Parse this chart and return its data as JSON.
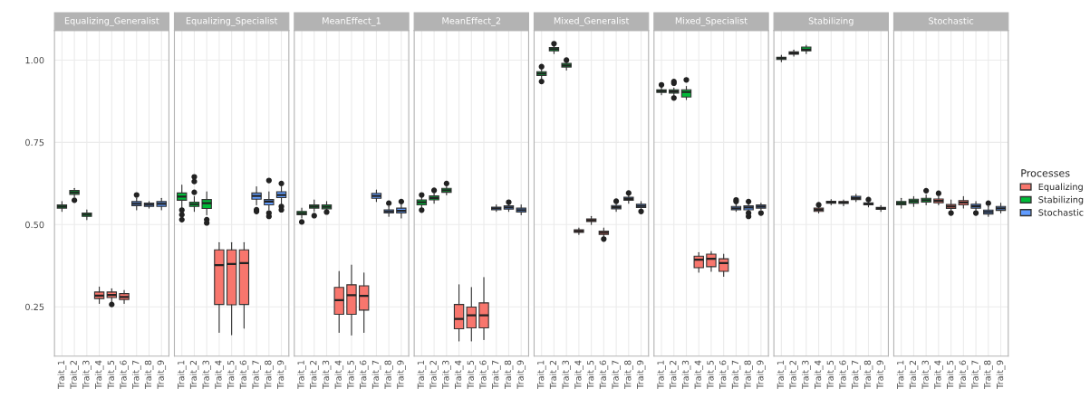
{
  "chart_data": [
    {
      "type": "box",
      "title": "Equalizing_Generalist",
      "categories": [
        "Trait_1",
        "Trait_2",
        "Trait_3",
        "Trait_4",
        "Trait_5",
        "Trait_6",
        "Trait_7",
        "Trait_8",
        "Trait_9"
      ],
      "ylim": [
        0.1,
        1.09
      ],
      "yticks": [
        {
          "value": 0.25,
          "label": "0.25"
        },
        {
          "value": 0.5,
          "label": "0.50"
        },
        {
          "value": 0.75,
          "label": "0.75"
        },
        {
          "value": 1.0,
          "label": "1.00"
        }
      ],
      "grid": true,
      "legend": "right",
      "legend_title": "Processes",
      "series": [
        {
          "name": "Equalizing",
          "color": "#f8766d",
          "boxes": [
            null,
            null,
            null,
            {
              "low": 0.26,
              "q1": 0.275,
              "median": 0.284,
              "q3": 0.295,
              "high": 0.31
            },
            {
              "low": 0.265,
              "q1": 0.278,
              "median": 0.286,
              "q3": 0.295,
              "high": 0.305,
              "outliers": [
                0.257
              ]
            },
            {
              "low": 0.26,
              "q1": 0.272,
              "median": 0.28,
              "q3": 0.29,
              "high": 0.3
            },
            null,
            null,
            null
          ]
        },
        {
          "name": "Stabilizing",
          "color": "#00ba38",
          "boxes": [
            {
              "low": 0.54,
              "q1": 0.55,
              "median": 0.555,
              "q3": 0.56,
              "high": 0.57
            },
            {
              "low": 0.585,
              "q1": 0.592,
              "median": 0.598,
              "q3": 0.604,
              "high": 0.61,
              "outliers": [
                0.574
              ]
            },
            {
              "low": 0.515,
              "q1": 0.525,
              "median": 0.53,
              "q3": 0.535,
              "high": 0.545
            },
            null,
            null,
            null,
            null,
            null,
            null
          ]
        },
        {
          "name": "Stochastic",
          "color": "#619cff",
          "boxes": [
            null,
            null,
            null,
            null,
            null,
            null,
            {
              "low": 0.545,
              "q1": 0.557,
              "median": 0.563,
              "q3": 0.57,
              "high": 0.58,
              "outliers": [
                0.59
              ]
            },
            {
              "low": 0.55,
              "q1": 0.555,
              "median": 0.56,
              "q3": 0.565,
              "high": 0.57
            },
            {
              "low": 0.545,
              "q1": 0.555,
              "median": 0.563,
              "q3": 0.57,
              "high": 0.58
            }
          ]
        }
      ]
    },
    {
      "type": "box",
      "title": "Equalizing_Specialist",
      "categories": [
        "Trait_1",
        "Trait_2",
        "Trait_3",
        "Trait_4",
        "Trait_5",
        "Trait_6",
        "Trait_7",
        "Trait_8",
        "Trait_9"
      ],
      "ylim": [
        0.1,
        1.09
      ],
      "tick_labels": "x",
      "grid": true,
      "series": [
        {
          "color": "#f8766d",
          "boxes": [
            null,
            null,
            null,
            {
              "low": 0.172,
              "q1": 0.257,
              "median": 0.377,
              "q3": 0.423,
              "high": 0.445
            },
            {
              "low": 0.165,
              "q1": 0.256,
              "median": 0.38,
              "q3": 0.423,
              "high": 0.445
            },
            {
              "low": 0.185,
              "q1": 0.257,
              "median": 0.383,
              "q3": 0.423,
              "high": 0.445
            },
            null,
            null,
            null
          ]
        },
        {
          "color": "#00ba38",
          "boxes": [
            {
              "low": 0.552,
              "q1": 0.574,
              "median": 0.585,
              "q3": 0.596,
              "high": 0.62,
              "outliers": [
                0.544,
                0.53,
                0.515
              ]
            },
            {
              "low": 0.54,
              "q1": 0.555,
              "median": 0.562,
              "q3": 0.568,
              "high": 0.585,
              "outliers": [
                0.598,
                0.631,
                0.645
              ]
            },
            {
              "low": 0.53,
              "q1": 0.549,
              "median": 0.565,
              "q3": 0.576,
              "high": 0.6,
              "outliers": [
                0.515,
                0.505
              ]
            },
            null,
            null,
            null,
            null,
            null,
            null
          ]
        },
        {
          "color": "#619cff",
          "boxes": [
            null,
            null,
            null,
            null,
            null,
            null,
            {
              "low": 0.56,
              "q1": 0.577,
              "median": 0.587,
              "q3": 0.596,
              "high": 0.615,
              "outliers": [
                0.545,
                0.54
              ]
            },
            {
              "low": 0.545,
              "q1": 0.56,
              "median": 0.57,
              "q3": 0.576,
              "high": 0.6,
              "outliers": [
                0.634,
                0.535,
                0.525
              ]
            },
            {
              "low": 0.56,
              "q1": 0.582,
              "median": 0.59,
              "q3": 0.6,
              "high": 0.615,
              "outliers": [
                0.625,
                0.555,
                0.545
              ]
            }
          ]
        }
      ]
    },
    {
      "type": "box",
      "title": "MeanEffect_1",
      "categories": [
        "Trait_1",
        "Trait_2",
        "Trait_3",
        "Trait_4",
        "Trait_5",
        "Trait_6",
        "Trait_7",
        "Trait_8",
        "Trait_9"
      ],
      "ylim": [
        0.1,
        1.09
      ],
      "tick_labels": "x",
      "grid": true,
      "series": [
        {
          "color": "#f8766d",
          "boxes": [
            null,
            null,
            null,
            {
              "low": 0.172,
              "q1": 0.227,
              "median": 0.27,
              "q3": 0.309,
              "high": 0.358
            },
            {
              "low": 0.164,
              "q1": 0.227,
              "median": 0.285,
              "q3": 0.317,
              "high": 0.377
            },
            {
              "low": 0.172,
              "q1": 0.24,
              "median": 0.283,
              "q3": 0.314,
              "high": 0.353
            },
            null,
            null,
            null
          ]
        },
        {
          "color": "#00ba38",
          "boxes": [
            {
              "low": 0.52,
              "q1": 0.53,
              "median": 0.535,
              "q3": 0.54,
              "high": 0.55,
              "outliers": [
                0.508
              ]
            },
            {
              "low": 0.54,
              "q1": 0.55,
              "median": 0.555,
              "q3": 0.56,
              "high": 0.575,
              "outliers": [
                0.527
              ]
            },
            {
              "low": 0.54,
              "q1": 0.548,
              "median": 0.554,
              "q3": 0.56,
              "high": 0.57,
              "outliers": [
                0.538
              ]
            },
            null,
            null,
            null,
            null,
            null,
            null
          ]
        },
        {
          "color": "#619cff",
          "boxes": [
            null,
            null,
            null,
            null,
            null,
            null,
            {
              "low": 0.57,
              "q1": 0.58,
              "median": 0.587,
              "q3": 0.595,
              "high": 0.605
            },
            {
              "low": 0.525,
              "q1": 0.535,
              "median": 0.54,
              "q3": 0.545,
              "high": 0.555,
              "outliers": [
                0.565
              ]
            },
            {
              "low": 0.52,
              "q1": 0.535,
              "median": 0.542,
              "q3": 0.55,
              "high": 0.56,
              "outliers": [
                0.57
              ]
            }
          ]
        }
      ]
    },
    {
      "type": "box",
      "title": "MeanEffect_2",
      "categories": [
        "Trait_1",
        "Trait_2",
        "Trait_3",
        "Trait_4",
        "Trait_5",
        "Trait_6",
        "Trait_7",
        "Trait_8",
        "Trait_9"
      ],
      "ylim": [
        0.1,
        1.09
      ],
      "tick_labels": "x",
      "grid": true,
      "series": [
        {
          "color": "#f8766d",
          "boxes": [
            null,
            null,
            null,
            {
              "low": 0.146,
              "q1": 0.183,
              "median": 0.213,
              "q3": 0.257,
              "high": 0.317
            },
            {
              "low": 0.146,
              "q1": 0.186,
              "median": 0.224,
              "q3": 0.249,
              "high": 0.309
            },
            {
              "low": 0.15,
              "q1": 0.186,
              "median": 0.224,
              "q3": 0.262,
              "high": 0.339
            },
            null,
            null,
            null
          ]
        },
        {
          "color": "#00ba38",
          "boxes": [
            {
              "low": 0.55,
              "q1": 0.56,
              "median": 0.568,
              "q3": 0.575,
              "high": 0.585,
              "outliers": [
                0.59,
                0.544
              ]
            },
            {
              "low": 0.565,
              "q1": 0.575,
              "median": 0.581,
              "q3": 0.587,
              "high": 0.6,
              "outliers": [
                0.604
              ]
            },
            {
              "low": 0.59,
              "q1": 0.598,
              "median": 0.604,
              "q3": 0.61,
              "high": 0.615,
              "outliers": [
                0.625
              ]
            },
            null,
            null,
            null,
            null,
            null,
            null
          ]
        },
        {
          "color": "#619cff",
          "boxes": [
            null,
            null,
            null,
            null,
            null,
            null,
            {
              "low": 0.54,
              "q1": 0.545,
              "median": 0.549,
              "q3": 0.553,
              "high": 0.56
            },
            {
              "low": 0.54,
              "q1": 0.547,
              "median": 0.552,
              "q3": 0.557,
              "high": 0.562,
              "outliers": [
                0.568
              ]
            },
            {
              "low": 0.53,
              "q1": 0.538,
              "median": 0.544,
              "q3": 0.55,
              "high": 0.56
            }
          ]
        }
      ]
    },
    {
      "type": "box",
      "title": "Mixed_Generalist",
      "categories": [
        "Trait_1",
        "Trait_2",
        "Trait_3",
        "Trait_4",
        "Trait_5",
        "Trait_6",
        "Trait_7",
        "Trait_8",
        "Trait_9"
      ],
      "ylim": [
        0.1,
        1.09
      ],
      "tick_labels": "x",
      "grid": true,
      "series": [
        {
          "color": "#f8766d",
          "boxes": [
            null,
            null,
            null,
            {
              "low": 0.47,
              "q1": 0.476,
              "median": 0.48,
              "q3": 0.484,
              "high": 0.49
            },
            {
              "low": 0.5,
              "q1": 0.509,
              "median": 0.513,
              "q3": 0.517,
              "high": 0.525
            },
            {
              "low": 0.46,
              "q1": 0.47,
              "median": 0.475,
              "q3": 0.48,
              "high": 0.49,
              "outliers": [
                0.456
              ]
            },
            null,
            null,
            null
          ]
        },
        {
          "color": "#00ba38",
          "boxes": [
            {
              "low": 0.945,
              "q1": 0.953,
              "median": 0.959,
              "q3": 0.965,
              "high": 0.972,
              "outliers": [
                0.98,
                0.935
              ]
            },
            {
              "low": 1.02,
              "q1": 1.028,
              "median": 1.033,
              "q3": 1.038,
              "high": 1.045,
              "outliers": [
                1.05
              ]
            },
            {
              "low": 0.97,
              "q1": 0.979,
              "median": 0.984,
              "q3": 0.99,
              "high": 0.995,
              "outliers": [
                1.0
              ]
            },
            null,
            null,
            null,
            null,
            null,
            null
          ]
        },
        {
          "color": "#619cff",
          "boxes": [
            null,
            null,
            null,
            null,
            null,
            null,
            {
              "low": 0.54,
              "q1": 0.548,
              "median": 0.553,
              "q3": 0.558,
              "high": 0.565,
              "outliers": [
                0.571
              ]
            },
            {
              "low": 0.565,
              "q1": 0.574,
              "median": 0.578,
              "q3": 0.583,
              "high": 0.59,
              "outliers": [
                0.596
              ]
            },
            {
              "low": 0.545,
              "q1": 0.552,
              "median": 0.557,
              "q3": 0.562,
              "high": 0.57,
              "outliers": [
                0.54
              ]
            }
          ]
        }
      ]
    },
    {
      "type": "box",
      "title": "Mixed_Specialist",
      "categories": [
        "Trait_1",
        "Trait_2",
        "Trait_3",
        "Trait_4",
        "Trait_5",
        "Trait_6",
        "Trait_7",
        "Trait_8",
        "Trait_9"
      ],
      "ylim": [
        0.1,
        1.09
      ],
      "tick_labels": "x",
      "grid": true,
      "series": [
        {
          "color": "#f8766d",
          "boxes": [
            null,
            null,
            null,
            {
              "low": 0.355,
              "q1": 0.369,
              "median": 0.393,
              "q3": 0.404,
              "high": 0.415
            },
            {
              "low": 0.358,
              "q1": 0.372,
              "median": 0.396,
              "q3": 0.41,
              "high": 0.418
            },
            {
              "low": 0.343,
              "q1": 0.358,
              "median": 0.383,
              "q3": 0.396,
              "high": 0.41
            },
            null,
            null,
            null
          ]
        },
        {
          "color": "#00ba38",
          "boxes": [
            {
              "low": 0.895,
              "q1": 0.902,
              "median": 0.906,
              "q3": 0.91,
              "high": 0.92,
              "outliers": [
                0.925
              ]
            },
            {
              "low": 0.89,
              "q1": 0.9,
              "median": 0.905,
              "q3": 0.91,
              "high": 0.915,
              "outliers": [
                0.93,
                0.935,
                0.885
              ]
            },
            {
              "low": 0.88,
              "q1": 0.888,
              "median": 0.903,
              "q3": 0.91,
              "high": 0.92,
              "outliers": [
                0.94
              ]
            },
            null,
            null,
            null,
            null,
            null,
            null
          ]
        },
        {
          "color": "#619cff",
          "boxes": [
            null,
            null,
            null,
            null,
            null,
            null,
            {
              "low": 0.54,
              "q1": 0.545,
              "median": 0.549,
              "q3": 0.555,
              "high": 0.565,
              "outliers": [
                0.575,
                0.57
              ]
            },
            {
              "low": 0.54,
              "q1": 0.545,
              "median": 0.552,
              "q3": 0.557,
              "high": 0.565,
              "outliers": [
                0.57,
                0.535,
                0.525
              ]
            },
            {
              "low": 0.545,
              "q1": 0.55,
              "median": 0.555,
              "q3": 0.56,
              "high": 0.565,
              "outliers": [
                0.535
              ]
            }
          ]
        }
      ]
    },
    {
      "type": "box",
      "title": "Stabilizing",
      "categories": [
        "Trait_1",
        "Trait_2",
        "Trait_3",
        "Trait_4",
        "Trait_5",
        "Trait_6",
        "Trait_7",
        "Trait_8",
        "Trait_9"
      ],
      "ylim": [
        0.1,
        1.09
      ],
      "tick_labels": "x",
      "grid": true,
      "series": [
        {
          "color": "#f8766d",
          "boxes": [
            null,
            null,
            null,
            {
              "low": 0.535,
              "q1": 0.54,
              "median": 0.545,
              "q3": 0.55,
              "high": 0.555,
              "outliers": [
                0.56
              ]
            },
            {
              "low": 0.56,
              "q1": 0.565,
              "median": 0.568,
              "q3": 0.571,
              "high": 0.576
            },
            {
              "low": 0.557,
              "q1": 0.564,
              "median": 0.567,
              "q3": 0.57,
              "high": 0.575
            },
            null,
            null,
            null
          ]
        },
        {
          "color": "#00ba38",
          "boxes": [
            {
              "low": 0.995,
              "q1": 1.002,
              "median": 1.006,
              "q3": 1.009,
              "high": 1.015
            },
            {
              "low": 1.012,
              "q1": 1.018,
              "median": 1.021,
              "q3": 1.025,
              "high": 1.031
            },
            {
              "low": 1.02,
              "q1": 1.028,
              "median": 1.032,
              "q3": 1.04,
              "high": 1.045
            },
            null,
            null,
            null,
            null,
            null,
            null
          ]
        },
        {
          "color": "#619cff",
          "boxes": [
            null,
            null,
            null,
            null,
            null,
            null,
            {
              "low": 0.57,
              "q1": 0.576,
              "median": 0.581,
              "q3": 0.586,
              "high": 0.592
            },
            {
              "low": 0.554,
              "q1": 0.56,
              "median": 0.563,
              "q3": 0.566,
              "high": 0.571,
              "outliers": [
                0.576
              ]
            },
            {
              "low": 0.54,
              "q1": 0.546,
              "median": 0.549,
              "q3": 0.552,
              "high": 0.558
            }
          ]
        }
      ]
    },
    {
      "type": "box",
      "title": "Stochastic",
      "categories": [
        "Trait_1",
        "Trait_2",
        "Trait_3",
        "Trait_4",
        "Trait_5",
        "Trait_6",
        "Trait_7",
        "Trait_8",
        "Trait_9"
      ],
      "ylim": [
        0.1,
        1.09
      ],
      "tick_labels": "x",
      "grid": true,
      "series": [
        {
          "color": "#f8766d",
          "boxes": [
            null,
            null,
            null,
            {
              "low": 0.56,
              "q1": 0.566,
              "median": 0.572,
              "q3": 0.578,
              "high": 0.585,
              "outliers": [
                0.595
              ]
            },
            {
              "low": 0.54,
              "q1": 0.549,
              "median": 0.555,
              "q3": 0.561,
              "high": 0.575,
              "outliers": [
                0.535
              ]
            },
            {
              "low": 0.55,
              "q1": 0.56,
              "median": 0.567,
              "q3": 0.573,
              "high": 0.585
            },
            null,
            null,
            null
          ]
        },
        {
          "color": "#00ba38",
          "boxes": [
            {
              "low": 0.55,
              "q1": 0.56,
              "median": 0.565,
              "q3": 0.57,
              "high": 0.58
            },
            {
              "low": 0.555,
              "q1": 0.565,
              "median": 0.571,
              "q3": 0.577,
              "high": 0.585
            },
            {
              "low": 0.56,
              "q1": 0.568,
              "median": 0.574,
              "q3": 0.58,
              "high": 0.59,
              "outliers": [
                0.603
              ]
            },
            null,
            null,
            null,
            null,
            null,
            null
          ]
        },
        {
          "color": "#619cff",
          "boxes": [
            null,
            null,
            null,
            null,
            null,
            null,
            {
              "low": 0.54,
              "q1": 0.55,
              "median": 0.556,
              "q3": 0.562,
              "high": 0.57,
              "outliers": [
                0.535
              ]
            },
            {
              "low": 0.525,
              "q1": 0.532,
              "median": 0.538,
              "q3": 0.544,
              "high": 0.555,
              "outliers": [
                0.565
              ]
            },
            {
              "low": 0.535,
              "q1": 0.543,
              "median": 0.549,
              "q3": 0.555,
              "high": 0.565
            }
          ]
        }
      ]
    }
  ]
}
